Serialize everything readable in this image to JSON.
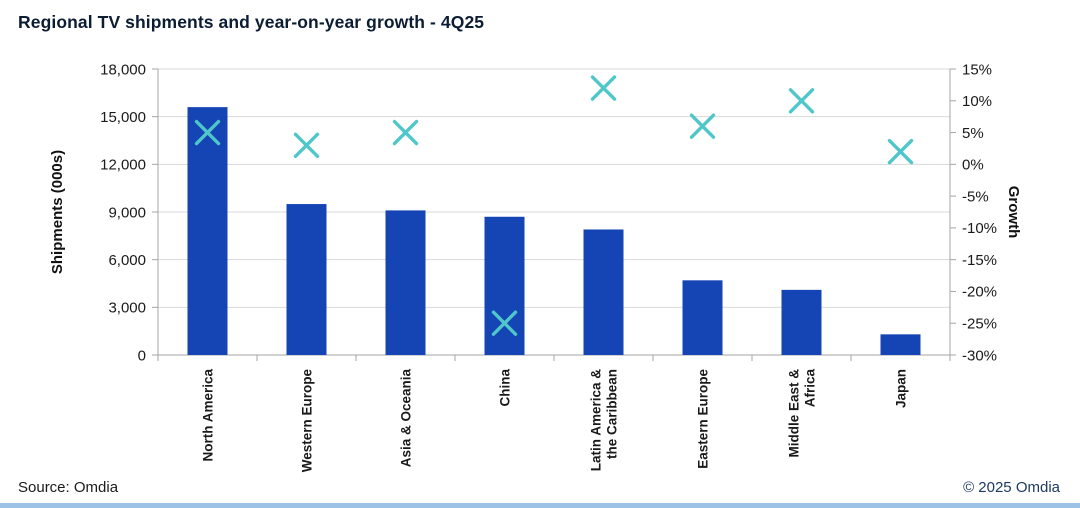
{
  "chart_data": {
    "type": "bar",
    "title": "Regional TV shipments and year-on-year growth - 4Q25",
    "categories": [
      "North America",
      "Western Europe",
      "Asia & Oceania",
      "China",
      "Latin America & the Caribbean",
      "Eastern Europe",
      "Middle East & Africa",
      "Japan"
    ],
    "category_label_lines": [
      [
        "North America"
      ],
      [
        "Western Europe"
      ],
      [
        "Asia & Oceania"
      ],
      [
        "China"
      ],
      [
        "Latin America &",
        "the Caribbean"
      ],
      [
        "Eastern Europe"
      ],
      [
        "Middle East &",
        "Africa"
      ],
      [
        "Japan"
      ]
    ],
    "series": [
      {
        "name": "Shipments (000s)",
        "chart_type": "bar",
        "axis": "left",
        "values": [
          15600,
          9500,
          9100,
          8700,
          7900,
          4700,
          4100,
          1300
        ]
      },
      {
        "name": "Growth",
        "chart_type": "scatter",
        "marker": "x",
        "axis": "right",
        "values": [
          5,
          3,
          5,
          -25,
          12,
          6,
          10,
          2
        ]
      }
    ],
    "left_axis": {
      "title": "Shipments (000s)",
      "min": 0,
      "max": 18000,
      "ticks": [
        0,
        3000,
        6000,
        9000,
        12000,
        15000,
        18000
      ],
      "tick_labels": [
        "0",
        "3,000",
        "6,000",
        "9,000",
        "12,000",
        "15,000",
        "18,000"
      ]
    },
    "right_axis": {
      "title": "Growth",
      "min": -30,
      "max": 15,
      "ticks": [
        15,
        10,
        5,
        0,
        -5,
        -10,
        -15,
        -20,
        -25,
        -30
      ],
      "tick_labels": [
        "15%",
        "10%",
        "5%",
        "0%",
        "-5%",
        "-10%",
        "-15%",
        "-20%",
        "-25%",
        "-30%"
      ]
    },
    "grid": true,
    "legend": "none"
  },
  "footer": {
    "source": "Source: Omdia",
    "copyright": "© 2025 Omdia"
  },
  "colors": {
    "bar": "#1544b4",
    "marker": "#4fc7ca",
    "grid": "#d9d9d9",
    "axis": "#a6a6a6"
  }
}
